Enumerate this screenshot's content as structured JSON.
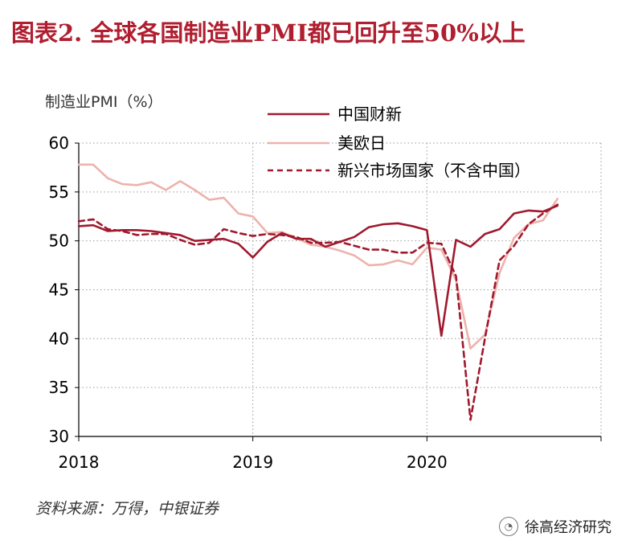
{
  "title": "图表2.  全球各国制造业PMI都已回升至50%以上",
  "source": "资料来源：万得，中银证券",
  "watermark": "徐高经济研究",
  "watermark_icon": "wechat-icon",
  "colors": {
    "title": "#b01e2f",
    "china": "#a0192e",
    "developed": "#eeb2ac",
    "emerging": "#a0192e"
  },
  "chart_data": {
    "type": "line",
    "ylabel": "制造业PMI（%）",
    "ylim": [
      30,
      60
    ],
    "yticks": [
      30,
      35,
      40,
      45,
      50,
      55,
      60
    ],
    "xticks": [
      {
        "label": "2018",
        "x": 2018.0
      },
      {
        "label": "2019",
        "x": 2019.0
      },
      {
        "label": "2020",
        "x": 2020.0
      }
    ],
    "xlim": [
      2018.0,
      2021.0
    ],
    "grid": "dotted",
    "legend_position": "top-right",
    "series": [
      {
        "name": "中国财新",
        "style": "solid",
        "x": [
          2018.0,
          2018.083,
          2018.167,
          2018.25,
          2018.333,
          2018.417,
          2018.5,
          2018.583,
          2018.667,
          2018.75,
          2018.833,
          2018.917,
          2019.0,
          2019.083,
          2019.167,
          2019.25,
          2019.333,
          2019.417,
          2019.5,
          2019.583,
          2019.667,
          2019.75,
          2019.833,
          2019.917,
          2020.0,
          2020.083,
          2020.167,
          2020.25,
          2020.333,
          2020.417,
          2020.5,
          2020.583,
          2020.667,
          2020.75
        ],
        "values": [
          51.5,
          51.6,
          51.0,
          51.1,
          51.1,
          51.0,
          50.8,
          50.6,
          50.0,
          50.1,
          50.2,
          49.7,
          48.3,
          49.9,
          50.8,
          50.2,
          50.2,
          49.4,
          49.9,
          50.4,
          51.4,
          51.7,
          51.8,
          51.5,
          51.1,
          40.3,
          50.1,
          49.4,
          50.7,
          51.2,
          52.8,
          53.1,
          53.0,
          53.6
        ]
      },
      {
        "name": "美欧日",
        "style": "solid",
        "x": [
          2018.0,
          2018.083,
          2018.167,
          2018.25,
          2018.333,
          2018.417,
          2018.5,
          2018.583,
          2018.667,
          2018.75,
          2018.833,
          2018.917,
          2019.0,
          2019.083,
          2019.167,
          2019.25,
          2019.333,
          2019.417,
          2019.5,
          2019.583,
          2019.667,
          2019.75,
          2019.833,
          2019.917,
          2020.0,
          2020.083,
          2020.167,
          2020.25,
          2020.333,
          2020.417,
          2020.5,
          2020.583,
          2020.667,
          2020.75
        ],
        "values": [
          57.8,
          57.8,
          56.4,
          55.8,
          55.7,
          56.0,
          55.2,
          56.1,
          55.2,
          54.2,
          54.4,
          52.8,
          52.5,
          50.8,
          50.9,
          50.3,
          49.6,
          49.4,
          49.0,
          48.5,
          47.5,
          47.6,
          48.0,
          47.6,
          49.3,
          49.1,
          46.0,
          39.0,
          40.4,
          46.7,
          50.3,
          51.7,
          52.1,
          54.3
        ]
      },
      {
        "name": "新兴市场国家（不含中国）",
        "style": "dashed",
        "x": [
          2018.0,
          2018.083,
          2018.167,
          2018.25,
          2018.333,
          2018.417,
          2018.5,
          2018.583,
          2018.667,
          2018.75,
          2018.833,
          2018.917,
          2019.0,
          2019.083,
          2019.167,
          2019.25,
          2019.333,
          2019.417,
          2019.5,
          2019.583,
          2019.667,
          2019.75,
          2019.833,
          2019.917,
          2020.0,
          2020.083,
          2020.167,
          2020.25,
          2020.333,
          2020.417,
          2020.5,
          2020.583,
          2020.667,
          2020.75
        ],
        "values": [
          52.0,
          52.2,
          51.2,
          51.0,
          50.6,
          50.7,
          50.7,
          50.1,
          49.6,
          49.8,
          51.2,
          50.8,
          50.5,
          50.7,
          50.6,
          50.4,
          49.8,
          49.8,
          49.9,
          49.5,
          49.1,
          49.1,
          48.8,
          48.8,
          49.8,
          49.7,
          46.4,
          31.7,
          40.0,
          48.0,
          49.5,
          51.7,
          52.8,
          53.7
        ]
      }
    ]
  }
}
